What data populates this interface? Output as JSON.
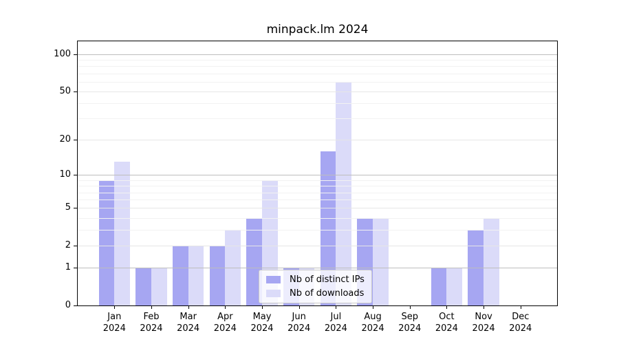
{
  "title": "minpack.lm 2024",
  "chart_data": {
    "type": "bar",
    "title": "minpack.lm 2024",
    "categories": [
      "Jan",
      "Feb",
      "Mar",
      "Apr",
      "May",
      "Jun",
      "Jul",
      "Aug",
      "Sep",
      "Oct",
      "Nov",
      "Dec"
    ],
    "x_year": "2024",
    "series": [
      {
        "name": "Nb of distinct IPs",
        "key": "distinct-ips",
        "color": "#a6a6f2",
        "values": [
          9,
          1,
          2,
          2,
          4,
          1,
          16,
          4,
          0,
          1,
          3,
          0
        ]
      },
      {
        "name": "Nb of downloads",
        "key": "downloads",
        "color": "#dbdbf9",
        "values": [
          13,
          1,
          2,
          3,
          9,
          1,
          60,
          4,
          0,
          1,
          4,
          0
        ]
      }
    ],
    "yscale": "log1p",
    "ylim": [
      0,
      128
    ],
    "y_tick_values": [
      0,
      1,
      2,
      5,
      10,
      20,
      50,
      100
    ],
    "grid": {
      "major": [
        1,
        10,
        100
      ],
      "mid": [
        2,
        5,
        20,
        50
      ],
      "minor": [
        3,
        4,
        6,
        7,
        8,
        9,
        30,
        40,
        60,
        70,
        80,
        90
      ]
    },
    "legend_position": "bottom-center"
  },
  "colors": {
    "grid_major": "#bdbdbd",
    "grid_mid": "#e6e6e6",
    "grid_minor": "#f2f2f2",
    "axis": "#000000",
    "background": "#ffffff"
  }
}
